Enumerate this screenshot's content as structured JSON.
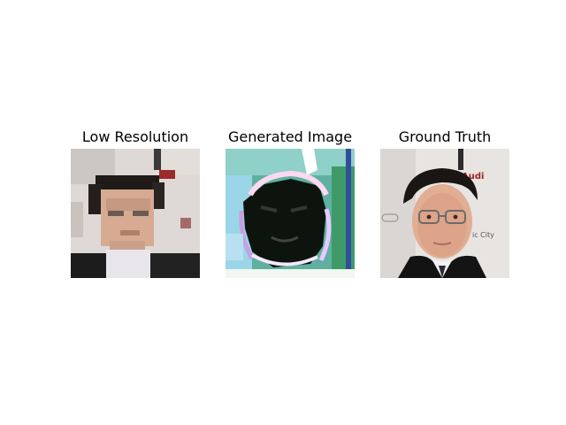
{
  "figure": {
    "panels": [
      {
        "title": "Low Resolution"
      },
      {
        "title": "Generated Image"
      },
      {
        "title": "Ground Truth"
      }
    ],
    "image_text": {
      "brand": "Audi",
      "fragment": "ic City"
    }
  }
}
